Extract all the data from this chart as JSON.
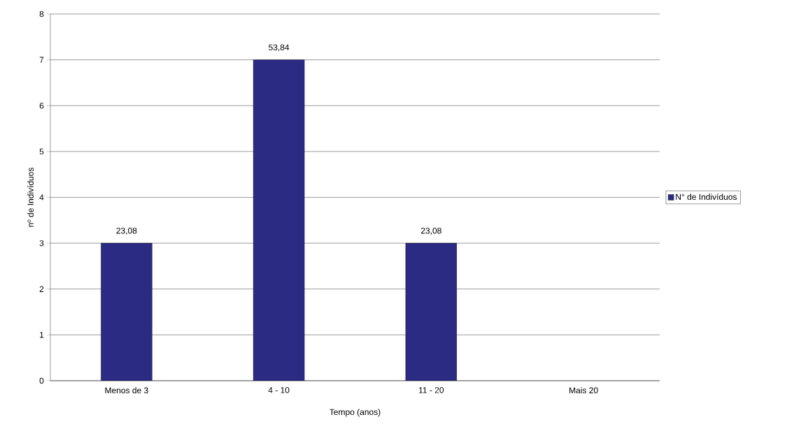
{
  "chart_data": {
    "type": "bar",
    "xlabel": "Tempo (anos)",
    "ylabel": "nº de Indivíduos",
    "categories": [
      "Menos de 3",
      "4 - 10",
      "11 - 20",
      "Mais 20"
    ],
    "series": [
      {
        "name": "N° de Indivíduos",
        "color": "#2b2b83",
        "values": [
          3,
          7,
          3,
          null
        ]
      }
    ],
    "annotations": [
      {
        "text": "23,08",
        "x": "Menos de 3",
        "y": 3
      },
      {
        "text": "53,84",
        "x": "4 - 10",
        "y": 7
      },
      {
        "text": "23,08",
        "x": "11 - 20",
        "y": 3
      }
    ],
    "ylim": [
      0,
      8
    ],
    "yticks": [
      0,
      1,
      2,
      3,
      4,
      5,
      6,
      7,
      8
    ],
    "grid": "y",
    "legend": "right"
  }
}
